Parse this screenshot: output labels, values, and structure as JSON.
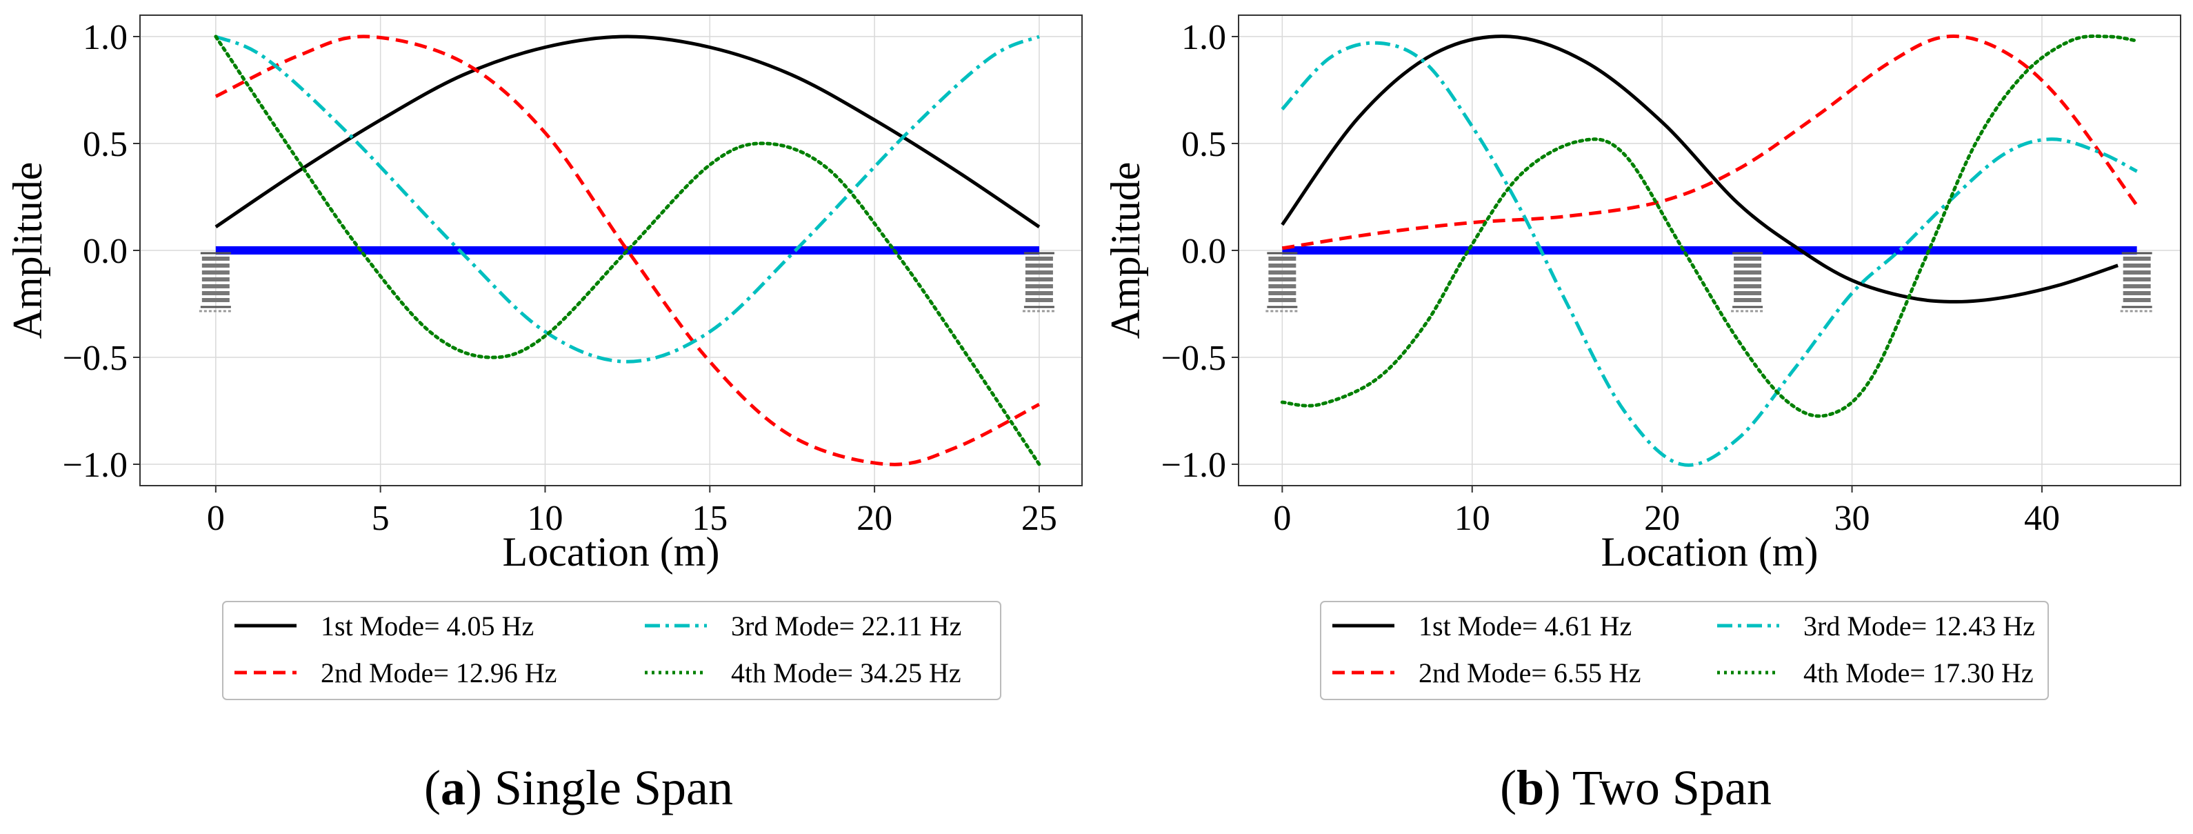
{
  "charts": [
    {
      "key": "a",
      "type": "line",
      "xlabel": "Location (m)",
      "ylabel": "Amplitude",
      "caption_letter": "a",
      "caption_text": "Single Span",
      "xlim": [
        -2.3,
        26.3
      ],
      "ylim": [
        -1.1,
        1.1
      ],
      "xticks": [
        0,
        5,
        10,
        15,
        20,
        25
      ],
      "yticks": [
        1.0,
        0.5,
        0.0,
        -0.5,
        -1.0
      ],
      "ytick_labels": [
        "1.0",
        "0.5",
        "0.0",
        "−0.5",
        "−1.0"
      ],
      "grid": true,
      "legend_placement": "bottom-center",
      "beam": {
        "from": 0,
        "to": 25,
        "color": "#0000ff"
      },
      "supports_x": [
        0,
        25
      ],
      "series": [
        {
          "name": "1st Mode= 4.05 Hz",
          "color": "#000000",
          "style": "solid",
          "x": [
            0,
            2.5,
            5,
            7.5,
            10,
            12.5,
            15,
            17.5,
            20,
            22.5,
            25
          ],
          "y": [
            0.11,
            0.37,
            0.61,
            0.82,
            0.95,
            1.0,
            0.95,
            0.82,
            0.61,
            0.37,
            0.11
          ]
        },
        {
          "name": "2nd Mode= 12.96 Hz",
          "color": "#ff0000",
          "style": "dashed",
          "x": [
            0,
            2.5,
            4.6,
            7.5,
            10,
            12.5,
            15,
            17.5,
            20.4,
            22.5,
            25
          ],
          "y": [
            0.72,
            0.91,
            1.0,
            0.88,
            0.55,
            0.0,
            -0.52,
            -0.87,
            -1.0,
            -0.92,
            -0.72
          ]
        },
        {
          "name": "3rd Mode= 22.11 Hz",
          "color": "#00bfbf",
          "style": "dashdot",
          "x": [
            0,
            1.5,
            4,
            7.4,
            10,
            12.5,
            15,
            17.6,
            21,
            23.5,
            25
          ],
          "y": [
            1.0,
            0.9,
            0.55,
            0.0,
            -0.38,
            -0.52,
            -0.38,
            0.0,
            0.55,
            0.9,
            1.0
          ]
        },
        {
          "name": "4th Mode= 34.25 Hz",
          "color": "#008000",
          "style": "dotted",
          "x": [
            0,
            2.5,
            4.4,
            6.5,
            8.3,
            10,
            12.5,
            15,
            16.7,
            18.6,
            20.6,
            22.5,
            25
          ],
          "y": [
            1.0,
            0.42,
            0.0,
            -0.38,
            -0.5,
            -0.4,
            0.0,
            0.4,
            0.5,
            0.38,
            0.0,
            -0.42,
            -1.0
          ]
        }
      ]
    },
    {
      "key": "b",
      "type": "line",
      "xlabel": "Location (m)",
      "ylabel": "Amplitude",
      "caption_letter": "b",
      "caption_text": "Two Span",
      "xlim": [
        -2.3,
        47.3
      ],
      "ylim": [
        -1.1,
        1.1
      ],
      "xticks": [
        0,
        10,
        20,
        30,
        40
      ],
      "yticks": [
        1.0,
        0.5,
        0.0,
        -0.5,
        -1.0
      ],
      "ytick_labels": [
        "1.0",
        "0.5",
        "0.0",
        "−0.5",
        "−1.0"
      ],
      "grid": true,
      "legend_placement": "bottom-center",
      "beam": {
        "from": 0,
        "to": 45,
        "color": "#0000ff"
      },
      "supports_x": [
        0,
        24.5,
        45
      ],
      "series": [
        {
          "name": "1st Mode= 4.61 Hz",
          "color": "#000000",
          "style": "solid",
          "x": [
            0,
            4,
            8,
            12,
            16,
            20,
            24,
            27.3,
            30,
            33,
            35.5,
            38,
            41,
            44
          ],
          "y": [
            0.12,
            0.62,
            0.92,
            1.0,
            0.88,
            0.6,
            0.22,
            0.0,
            -0.14,
            -0.22,
            -0.24,
            -0.22,
            -0.16,
            -0.07
          ]
        },
        {
          "name": "2nd Mode= 6.55 Hz",
          "color": "#ff0000",
          "style": "dashed",
          "x": [
            0,
            5,
            10,
            15,
            20,
            24,
            28,
            32,
            35,
            38,
            41,
            45
          ],
          "y": [
            0.01,
            0.08,
            0.13,
            0.16,
            0.23,
            0.38,
            0.62,
            0.88,
            1.0,
            0.93,
            0.7,
            0.21
          ]
        },
        {
          "name": "3rd Mode= 12.43 Hz",
          "color": "#00bfbf",
          "style": "dashdot",
          "x": [
            0,
            2.5,
            5,
            7.5,
            10,
            12.5,
            15,
            18,
            21,
            24,
            27,
            30,
            32.5,
            35,
            38,
            40.5,
            43,
            45
          ],
          "y": [
            0.66,
            0.9,
            0.97,
            0.88,
            0.58,
            0.2,
            -0.25,
            -0.75,
            -1.0,
            -0.88,
            -0.55,
            -0.2,
            0.0,
            0.22,
            0.45,
            0.52,
            0.46,
            0.37
          ]
        },
        {
          "name": "4th Mode= 17.30 Hz",
          "color": "#008000",
          "style": "dotted",
          "x": [
            0,
            2,
            5,
            7.5,
            9.8,
            12.5,
            15.6,
            18,
            21,
            24,
            26.5,
            28.7,
            31,
            33.8,
            36.5,
            39,
            41.5,
            43.5,
            45
          ],
          "y": [
            -0.71,
            -0.72,
            -0.6,
            -0.35,
            0.0,
            0.35,
            0.51,
            0.45,
            0.02,
            -0.42,
            -0.7,
            -0.77,
            -0.6,
            -0.05,
            0.5,
            0.82,
            0.98,
            1.0,
            0.98
          ]
        }
      ]
    }
  ]
}
